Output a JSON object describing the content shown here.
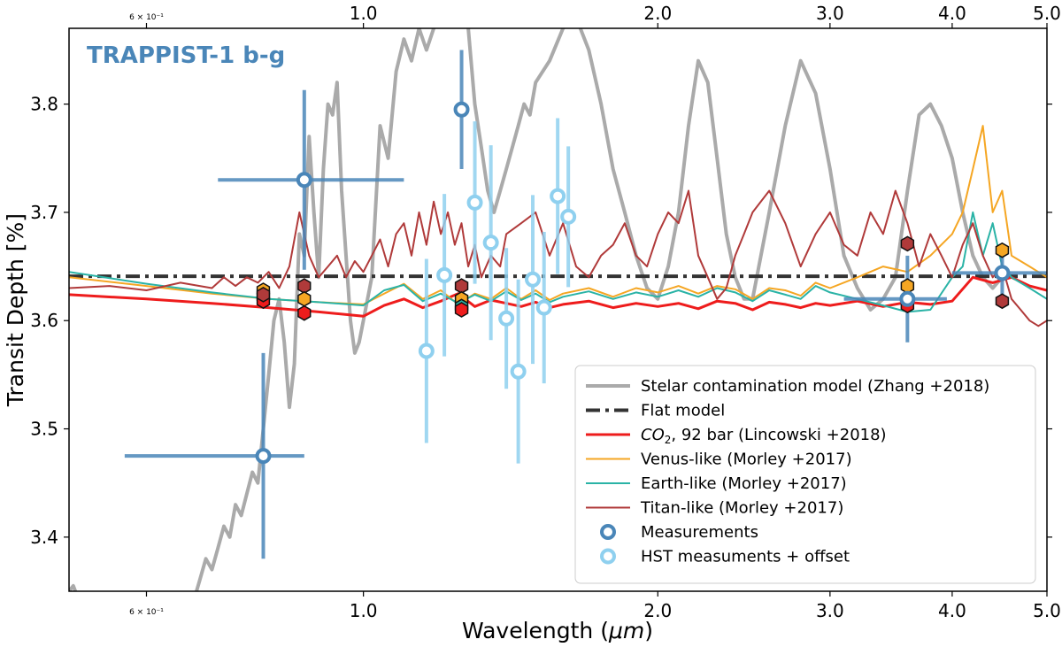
{
  "chart_data": {
    "type": "line",
    "title": "TRAPPIST-1 b-g",
    "title_color": "#4a86b8",
    "xlabel": "Wavelength (μm)",
    "ylabel": "Transit Depth [%]",
    "xscale": "log",
    "xlim": [
      0.5,
      5.0
    ],
    "ylim": [
      3.35,
      3.87
    ],
    "x_ticks": [
      {
        "value": 0.6,
        "label": "6 × 10⁻¹",
        "minor": true
      },
      {
        "value": 1.0,
        "label": "1.0"
      },
      {
        "value": 2.0,
        "label": "2.0"
      },
      {
        "value": 3.0,
        "label": "3.0"
      },
      {
        "value": 4.0,
        "label": "4.0"
      },
      {
        "value": 5.0,
        "label": "5.0"
      }
    ],
    "y_ticks": [
      {
        "value": 3.4,
        "label": "3.4"
      },
      {
        "value": 3.5,
        "label": "3.5"
      },
      {
        "value": 3.6,
        "label": "3.6"
      },
      {
        "value": 3.7,
        "label": "3.7"
      },
      {
        "value": 3.8,
        "label": "3.8"
      }
    ],
    "legend_position": "bottom-right",
    "series": [
      {
        "name": "Stelar contamination model (Zhang +2018)",
        "color": "#aaaaaa",
        "width": 4,
        "kind": "line",
        "x": [
          0.5,
          0.505,
          0.51,
          0.52,
          0.53,
          0.54,
          0.55,
          0.56,
          0.57,
          0.58,
          0.59,
          0.6,
          0.61,
          0.62,
          0.63,
          0.64,
          0.65,
          0.66,
          0.67,
          0.68,
          0.69,
          0.7,
          0.71,
          0.72,
          0.73,
          0.74,
          0.75,
          0.76,
          0.77,
          0.78,
          0.79,
          0.8,
          0.81,
          0.82,
          0.83,
          0.84,
          0.85,
          0.86,
          0.87,
          0.88,
          0.89,
          0.9,
          0.91,
          0.92,
          0.93,
          0.94,
          0.95,
          0.96,
          0.97,
          0.98,
          0.99,
          1.0,
          1.02,
          1.04,
          1.06,
          1.08,
          1.1,
          1.12,
          1.14,
          1.16,
          1.18,
          1.2,
          1.22,
          1.24,
          1.26,
          1.28,
          1.3,
          1.32,
          1.34,
          1.36,
          1.38,
          1.4,
          1.42,
          1.44,
          1.46,
          1.48,
          1.5,
          1.55,
          1.6,
          1.65,
          1.7,
          1.75,
          1.8,
          1.85,
          1.9,
          1.95,
          2.0,
          2.05,
          2.1,
          2.15,
          2.2,
          2.25,
          2.3,
          2.35,
          2.4,
          2.45,
          2.5,
          2.6,
          2.7,
          2.8,
          2.9,
          3.0,
          3.1,
          3.2,
          3.3,
          3.4,
          3.5,
          3.6,
          3.7,
          3.8,
          3.9,
          4.0,
          4.1,
          4.2,
          4.3,
          4.4,
          4.5
        ],
        "y": [
          3.35,
          3.355,
          3.345,
          3.33,
          3.32,
          3.31,
          3.305,
          3.3,
          3.3,
          3.3,
          3.3,
          3.3,
          3.3,
          3.3,
          3.3,
          3.31,
          3.33,
          3.32,
          3.34,
          3.36,
          3.38,
          3.37,
          3.39,
          3.41,
          3.4,
          3.43,
          3.42,
          3.44,
          3.46,
          3.45,
          3.5,
          3.55,
          3.6,
          3.62,
          3.58,
          3.52,
          3.56,
          3.68,
          3.66,
          3.77,
          3.7,
          3.64,
          3.74,
          3.8,
          3.79,
          3.82,
          3.72,
          3.66,
          3.6,
          3.57,
          3.58,
          3.6,
          3.64,
          3.78,
          3.75,
          3.83,
          3.86,
          3.84,
          3.87,
          3.85,
          3.87,
          3.88,
          3.89,
          3.88,
          3.89,
          3.87,
          3.8,
          3.76,
          3.72,
          3.7,
          3.72,
          3.74,
          3.76,
          3.78,
          3.8,
          3.79,
          3.82,
          3.84,
          3.87,
          3.88,
          3.85,
          3.8,
          3.74,
          3.7,
          3.66,
          3.63,
          3.62,
          3.65,
          3.7,
          3.78,
          3.84,
          3.82,
          3.75,
          3.68,
          3.64,
          3.62,
          3.62,
          3.7,
          3.78,
          3.84,
          3.81,
          3.74,
          3.66,
          3.63,
          3.61,
          3.62,
          3.64,
          3.72,
          3.79,
          3.8,
          3.78,
          3.75,
          3.7,
          3.66,
          3.64,
          3.63,
          3.64
        ]
      },
      {
        "name": "Flat model",
        "color": "#333333",
        "width": 4,
        "kind": "dashdot",
        "x": [
          0.5,
          5.0
        ],
        "y": [
          3.641,
          3.641
        ]
      },
      {
        "name": "CO2, 92 bar (Lincowski +2018)",
        "legend_label_main": "CO",
        "legend_label_sub": "2",
        "legend_label_rest": ", 92 bar (Lincowski +2018)",
        "color": "#ee1c1c",
        "width": 3,
        "kind": "line",
        "x": [
          0.5,
          0.6,
          0.7,
          0.8,
          0.9,
          1.0,
          1.05,
          1.1,
          1.15,
          1.2,
          1.25,
          1.3,
          1.35,
          1.4,
          1.45,
          1.5,
          1.55,
          1.6,
          1.7,
          1.8,
          1.9,
          2.0,
          2.1,
          2.2,
          2.3,
          2.4,
          2.5,
          2.6,
          2.7,
          2.8,
          2.9,
          3.0,
          3.2,
          3.4,
          3.6,
          3.8,
          4.0,
          4.2,
          4.4,
          4.6,
          4.8,
          5.0
        ],
        "y": [
          3.624,
          3.62,
          3.616,
          3.612,
          3.608,
          3.604,
          3.614,
          3.62,
          3.612,
          3.618,
          3.625,
          3.613,
          3.619,
          3.616,
          3.613,
          3.617,
          3.612,
          3.615,
          3.618,
          3.612,
          3.616,
          3.613,
          3.616,
          3.611,
          3.618,
          3.616,
          3.61,
          3.617,
          3.615,
          3.612,
          3.616,
          3.614,
          3.618,
          3.613,
          3.617,
          3.615,
          3.618,
          3.64,
          3.635,
          3.64,
          3.632,
          3.628
        ]
      },
      {
        "name": "Venus-like (Morley +2017)",
        "color": "#f5a623",
        "width": 2,
        "kind": "line",
        "x": [
          0.5,
          0.6,
          0.7,
          0.8,
          0.9,
          1.0,
          1.05,
          1.1,
          1.15,
          1.2,
          1.25,
          1.3,
          1.35,
          1.4,
          1.45,
          1.5,
          1.55,
          1.6,
          1.7,
          1.8,
          1.9,
          2.0,
          2.1,
          2.2,
          2.3,
          2.4,
          2.5,
          2.6,
          2.7,
          2.8,
          2.9,
          3.0,
          3.2,
          3.4,
          3.6,
          3.8,
          4.0,
          4.1,
          4.2,
          4.3,
          4.4,
          4.5,
          4.6,
          4.8,
          5.0
        ],
        "y": [
          3.64,
          3.632,
          3.625,
          3.62,
          3.617,
          3.615,
          3.625,
          3.634,
          3.62,
          3.628,
          3.615,
          3.625,
          3.62,
          3.63,
          3.62,
          3.628,
          3.619,
          3.625,
          3.63,
          3.622,
          3.63,
          3.626,
          3.632,
          3.625,
          3.632,
          3.629,
          3.62,
          3.63,
          3.628,
          3.623,
          3.635,
          3.63,
          3.64,
          3.65,
          3.645,
          3.66,
          3.68,
          3.7,
          3.74,
          3.78,
          3.7,
          3.72,
          3.66,
          3.65,
          3.64
        ]
      },
      {
        "name": "Earth-like (Morley +2017)",
        "color": "#2ab3a6",
        "width": 2,
        "kind": "line",
        "x": [
          0.5,
          0.6,
          0.7,
          0.8,
          0.9,
          1.0,
          1.05,
          1.1,
          1.15,
          1.2,
          1.25,
          1.3,
          1.35,
          1.4,
          1.45,
          1.5,
          1.55,
          1.6,
          1.7,
          1.8,
          1.9,
          2.0,
          2.1,
          2.2,
          2.3,
          2.4,
          2.5,
          2.6,
          2.7,
          2.8,
          2.9,
          3.0,
          3.2,
          3.4,
          3.6,
          3.8,
          4.0,
          4.1,
          4.2,
          4.3,
          4.4,
          4.5,
          4.6,
          4.8,
          5.0
        ],
        "y": [
          3.645,
          3.634,
          3.626,
          3.62,
          3.617,
          3.614,
          3.628,
          3.633,
          3.618,
          3.625,
          3.616,
          3.624,
          3.618,
          3.627,
          3.619,
          3.625,
          3.617,
          3.622,
          3.627,
          3.62,
          3.626,
          3.622,
          3.628,
          3.622,
          3.63,
          3.626,
          3.618,
          3.628,
          3.624,
          3.62,
          3.632,
          3.626,
          3.62,
          3.614,
          3.608,
          3.61,
          3.64,
          3.65,
          3.7,
          3.66,
          3.69,
          3.65,
          3.64,
          3.63,
          3.62
        ]
      },
      {
        "name": "Titan-like (Morley +2017)",
        "color": "#b03a3a",
        "width": 2,
        "kind": "line",
        "x": [
          0.5,
          0.55,
          0.6,
          0.65,
          0.7,
          0.72,
          0.74,
          0.76,
          0.78,
          0.8,
          0.82,
          0.84,
          0.86,
          0.88,
          0.9,
          0.92,
          0.94,
          0.96,
          0.98,
          1.0,
          1.02,
          1.04,
          1.06,
          1.08,
          1.1,
          1.12,
          1.14,
          1.16,
          1.18,
          1.2,
          1.22,
          1.24,
          1.26,
          1.28,
          1.3,
          1.32,
          1.35,
          1.38,
          1.4,
          1.45,
          1.5,
          1.55,
          1.6,
          1.65,
          1.7,
          1.75,
          1.8,
          1.85,
          1.9,
          1.95,
          2.0,
          2.05,
          2.1,
          2.15,
          2.2,
          2.25,
          2.3,
          2.35,
          2.4,
          2.45,
          2.5,
          2.6,
          2.7,
          2.8,
          2.9,
          3.0,
          3.1,
          3.2,
          3.3,
          3.4,
          3.5,
          3.6,
          3.7,
          3.8,
          3.9,
          4.0,
          4.1,
          4.2,
          4.3,
          4.4,
          4.5,
          4.6,
          4.7,
          4.8,
          4.9,
          5.0
        ],
        "y": [
          3.63,
          3.632,
          3.628,
          3.635,
          3.63,
          3.64,
          3.632,
          3.64,
          3.635,
          3.645,
          3.63,
          3.65,
          3.7,
          3.66,
          3.64,
          3.65,
          3.66,
          3.64,
          3.655,
          3.645,
          3.66,
          3.675,
          3.65,
          3.68,
          3.69,
          3.66,
          3.7,
          3.67,
          3.71,
          3.68,
          3.7,
          3.67,
          3.69,
          3.65,
          3.67,
          3.64,
          3.66,
          3.65,
          3.68,
          3.69,
          3.7,
          3.66,
          3.69,
          3.65,
          3.64,
          3.66,
          3.67,
          3.69,
          3.66,
          3.65,
          3.68,
          3.7,
          3.69,
          3.72,
          3.66,
          3.64,
          3.62,
          3.63,
          3.66,
          3.68,
          3.7,
          3.72,
          3.69,
          3.65,
          3.68,
          3.7,
          3.67,
          3.66,
          3.7,
          3.68,
          3.72,
          3.69,
          3.65,
          3.68,
          3.66,
          3.64,
          3.67,
          3.69,
          3.66,
          3.64,
          3.65,
          3.62,
          3.61,
          3.6,
          3.595,
          3.6
        ]
      }
    ],
    "measurements": {
      "name": "Measurements",
      "color": "#4a86b8",
      "points": [
        {
          "x": 0.79,
          "y": 3.475,
          "xerr": [
            0.57,
            0.87
          ],
          "yerr": 0.095
        },
        {
          "x": 0.87,
          "y": 3.73,
          "xerr": [
            0.71,
            1.1
          ],
          "yerr": 0.083
        },
        {
          "x": 1.26,
          "y": 3.795,
          "xerr": [
            1.26,
            1.26
          ],
          "yerr": 0.055
        },
        {
          "x": 3.6,
          "y": 3.62,
          "xerr": [
            3.1,
            3.95
          ],
          "yerr": 0.04
        },
        {
          "x": 4.5,
          "y": 3.644,
          "xerr": [
            4.0,
            5.0
          ],
          "yerr": 0.02
        }
      ]
    },
    "hst_measurements": {
      "name": "HST measuments + offset",
      "color": "#8fd0ef",
      "points": [
        {
          "x": 1.16,
          "y": 3.572,
          "yerr": 0.085
        },
        {
          "x": 1.21,
          "y": 3.642,
          "yerr": 0.075
        },
        {
          "x": 1.3,
          "y": 3.709,
          "yerr": 0.075
        },
        {
          "x": 1.35,
          "y": 3.672,
          "yerr": 0.09
        },
        {
          "x": 1.4,
          "y": 3.602,
          "yerr": 0.065
        },
        {
          "x": 1.44,
          "y": 3.553,
          "yerr": 0.085
        },
        {
          "x": 1.49,
          "y": 3.638,
          "yerr": 0.078
        },
        {
          "x": 1.53,
          "y": 3.612,
          "yerr": 0.07
        },
        {
          "x": 1.58,
          "y": 3.715,
          "yerr": 0.072
        },
        {
          "x": 1.62,
          "y": 3.696,
          "yerr": 0.065
        }
      ]
    },
    "model_markers": {
      "bins": [
        {
          "x": 0.79,
          "values": [
            {
              "y": 3.628,
              "color": "#f5a623"
            },
            {
              "y": 3.622,
              "color": "#2ab3a6"
            },
            {
              "y": 3.618,
              "color": "#ee1c1c"
            },
            {
              "y": 3.624,
              "color": "#b03a3a"
            }
          ]
        },
        {
          "x": 0.87,
          "values": [
            {
              "y": 3.632,
              "color": "#b03a3a"
            },
            {
              "y": 3.62,
              "color": "#f5a623"
            },
            {
              "y": 3.607,
              "color": "#ee1c1c"
            }
          ]
        },
        {
          "x": 1.26,
          "values": [
            {
              "y": 3.632,
              "color": "#b03a3a"
            },
            {
              "y": 3.62,
              "color": "#f5a623"
            },
            {
              "y": 3.613,
              "color": "#2ab3a6"
            },
            {
              "y": 3.61,
              "color": "#ee1c1c"
            }
          ]
        },
        {
          "x": 3.6,
          "values": [
            {
              "y": 3.671,
              "color": "#b03a3a"
            },
            {
              "y": 3.632,
              "color": "#f5a623"
            },
            {
              "y": 3.62,
              "color": "#2ab3a6"
            },
            {
              "y": 3.614,
              "color": "#ee1c1c"
            }
          ]
        },
        {
          "x": 4.5,
          "values": [
            {
              "y": 3.665,
              "color": "#f5a623"
            },
            {
              "y": 3.644,
              "color": "#2ab3a6"
            },
            {
              "y": 3.618,
              "color": "#b03a3a"
            }
          ]
        }
      ]
    }
  }
}
